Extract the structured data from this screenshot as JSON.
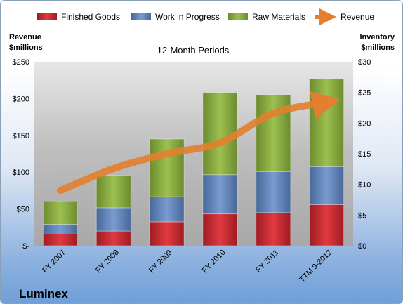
{
  "chart_data": {
    "type": "bar",
    "subtitle": "12-Month Periods",
    "company": "Luminex",
    "categories": [
      "FY 2007",
      "FY 2008",
      "FY 2009",
      "FY 2010",
      "FY 2011",
      "TTM 9-2012"
    ],
    "left_axis": {
      "title_line1": "Revenue",
      "title_line2": "$millions",
      "ylim": [
        0,
        250
      ],
      "ticks": [
        0,
        50,
        100,
        150,
        200,
        250
      ],
      "tick_labels": [
        "$-",
        "$50",
        "$100",
        "$150",
        "$200",
        "$250"
      ]
    },
    "right_axis": {
      "title_line1": "Inventory",
      "title_line2": "$millions",
      "ylim": [
        0,
        30
      ],
      "ticks": [
        0,
        5,
        10,
        15,
        20,
        25,
        30
      ],
      "tick_labels": [
        "$0",
        "$5",
        "$10",
        "$15",
        "$20",
        "$25",
        "$30"
      ]
    },
    "series": [
      {
        "name": "Finished Goods",
        "axis": "right",
        "stacked": true,
        "color": "#c0262c",
        "values": [
          1.9,
          2.4,
          3.9,
          5.2,
          5.4,
          6.7
        ]
      },
      {
        "name": "Work in Progress",
        "axis": "right",
        "stacked": true,
        "color": "#5a7fb8",
        "values": [
          1.6,
          3.8,
          4.1,
          6.4,
          6.7,
          6.2
        ]
      },
      {
        "name": "Raw Materials",
        "axis": "right",
        "stacked": true,
        "color": "#86a83e",
        "values": [
          3.7,
          5.3,
          9.4,
          13.4,
          12.5,
          14.3
        ]
      },
      {
        "name": "Revenue",
        "axis": "left",
        "type": "line",
        "color": "#e37f2e",
        "values": [
          75,
          105,
          125,
          140,
          180,
          195
        ]
      }
    ],
    "legend_position": "top",
    "grid": false
  }
}
